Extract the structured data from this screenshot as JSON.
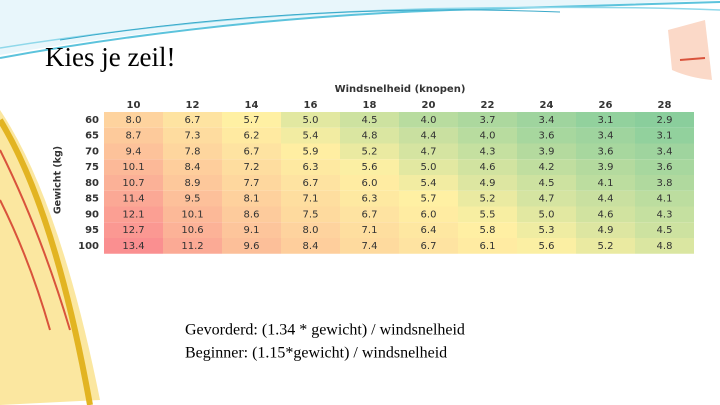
{
  "header": {
    "title": "Kies je zeil!"
  },
  "table": {
    "column_group_label": "Windsnelheid (knopen)",
    "row_group_label": "Gewicht (kg)",
    "columns": [
      "10",
      "12",
      "14",
      "16",
      "18",
      "20",
      "22",
      "24",
      "26",
      "28"
    ],
    "row_labels": [
      "60",
      "65",
      "70",
      "75",
      "80",
      "85",
      "90",
      "95",
      "100"
    ],
    "rows": [
      [
        "8.0",
        "6.7",
        "5.7",
        "5.0",
        "4.5",
        "4.0",
        "3.7",
        "3.4",
        "3.1",
        "2.9"
      ],
      [
        "8.7",
        "7.3",
        "6.2",
        "5.4",
        "4.8",
        "4.4",
        "4.0",
        "3.6",
        "3.4",
        "3.1"
      ],
      [
        "9.4",
        "7.8",
        "6.7",
        "5.9",
        "5.2",
        "4.7",
        "4.3",
        "3.9",
        "3.6",
        "3.4"
      ],
      [
        "10.1",
        "8.4",
        "7.2",
        "6.3",
        "5.6",
        "5.0",
        "4.6",
        "4.2",
        "3.9",
        "3.6"
      ],
      [
        "10.7",
        "8.9",
        "7.7",
        "6.7",
        "6.0",
        "5.4",
        "4.9",
        "4.5",
        "4.1",
        "3.8"
      ],
      [
        "11.4",
        "9.5",
        "8.1",
        "7.1",
        "6.3",
        "5.7",
        "5.2",
        "4.7",
        "4.4",
        "4.1"
      ],
      [
        "12.1",
        "10.1",
        "8.6",
        "7.5",
        "6.7",
        "6.0",
        "5.5",
        "5.0",
        "4.6",
        "4.3"
      ],
      [
        "12.7",
        "10.6",
        "9.1",
        "8.0",
        "7.1",
        "6.4",
        "5.8",
        "5.3",
        "4.9",
        "4.5"
      ],
      [
        "13.4",
        "11.2",
        "9.6",
        "8.4",
        "7.4",
        "6.7",
        "6.1",
        "5.6",
        "5.2",
        "4.8"
      ]
    ]
  },
  "formulas": [
    "Gevorderd: (1.34 * gewicht) / windsnelheid",
    "Beginner: (1.15*gewicht) / windsnelheid"
  ]
}
